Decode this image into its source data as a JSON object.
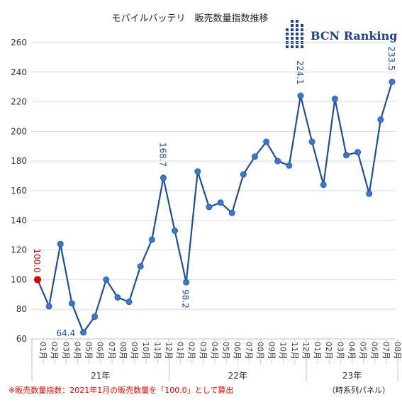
{
  "chart_data": {
    "type": "line",
    "title": "モバイルバッテリ　販売数量指数推移",
    "categories": [
      "01月",
      "02月",
      "03月",
      "04月",
      "05月",
      "06月",
      "07月",
      "08月",
      "09月",
      "10月",
      "11月",
      "12月",
      "01月",
      "02月",
      "03月",
      "04月",
      "05月",
      "06月",
      "07月",
      "08月",
      "09月",
      "10月",
      "11月",
      "12月",
      "01月",
      "02月",
      "03月",
      "04月",
      "05月",
      "06月",
      "07月",
      "08月"
    ],
    "year_groups": [
      {
        "label": "21年",
        "count": 12
      },
      {
        "label": "22年",
        "count": 12
      },
      {
        "label": "23年",
        "count": 8
      }
    ],
    "series": [
      {
        "values": [
          100.0,
          82,
          124,
          84,
          64.4,
          75,
          100,
          88,
          85,
          109,
          127,
          168.7,
          133,
          98.2,
          173,
          149,
          152,
          145,
          171,
          183,
          193,
          180,
          177,
          224.1,
          193,
          164,
          222,
          184,
          186,
          158,
          208,
          233.5
        ],
        "color": "#1f4e9a"
      }
    ],
    "data_labels": [
      {
        "index": 0,
        "text": "100.0",
        "color": "#e00000"
      },
      {
        "index": 4,
        "text": "64.4",
        "color": "#1f4e8c"
      },
      {
        "index": 11,
        "text": "168.7",
        "color": "#1f4e8c"
      },
      {
        "index": 13,
        "text": "98.2",
        "color": "#1f4e8c"
      },
      {
        "index": 23,
        "text": "224.1",
        "color": "#1f4e8c"
      },
      {
        "index": 31,
        "text": "233.5",
        "color": "#1f4e8c"
      }
    ],
    "yticks": [
      60,
      80,
      100,
      120,
      140,
      160,
      180,
      200,
      220,
      240,
      260
    ],
    "ylim": [
      60,
      260
    ],
    "grid": true,
    "line_color": "#1f4e9a",
    "marker_color": "#3a78c9",
    "first_marker_color": "#e00000"
  },
  "logo": {
    "text": "BCN Ranking",
    "color": "#1f3f8f"
  },
  "footnote": "※販売数量指数：2021年1月の販売数量を「100.0」として算出",
  "panel_note": "（時系列パネル）"
}
